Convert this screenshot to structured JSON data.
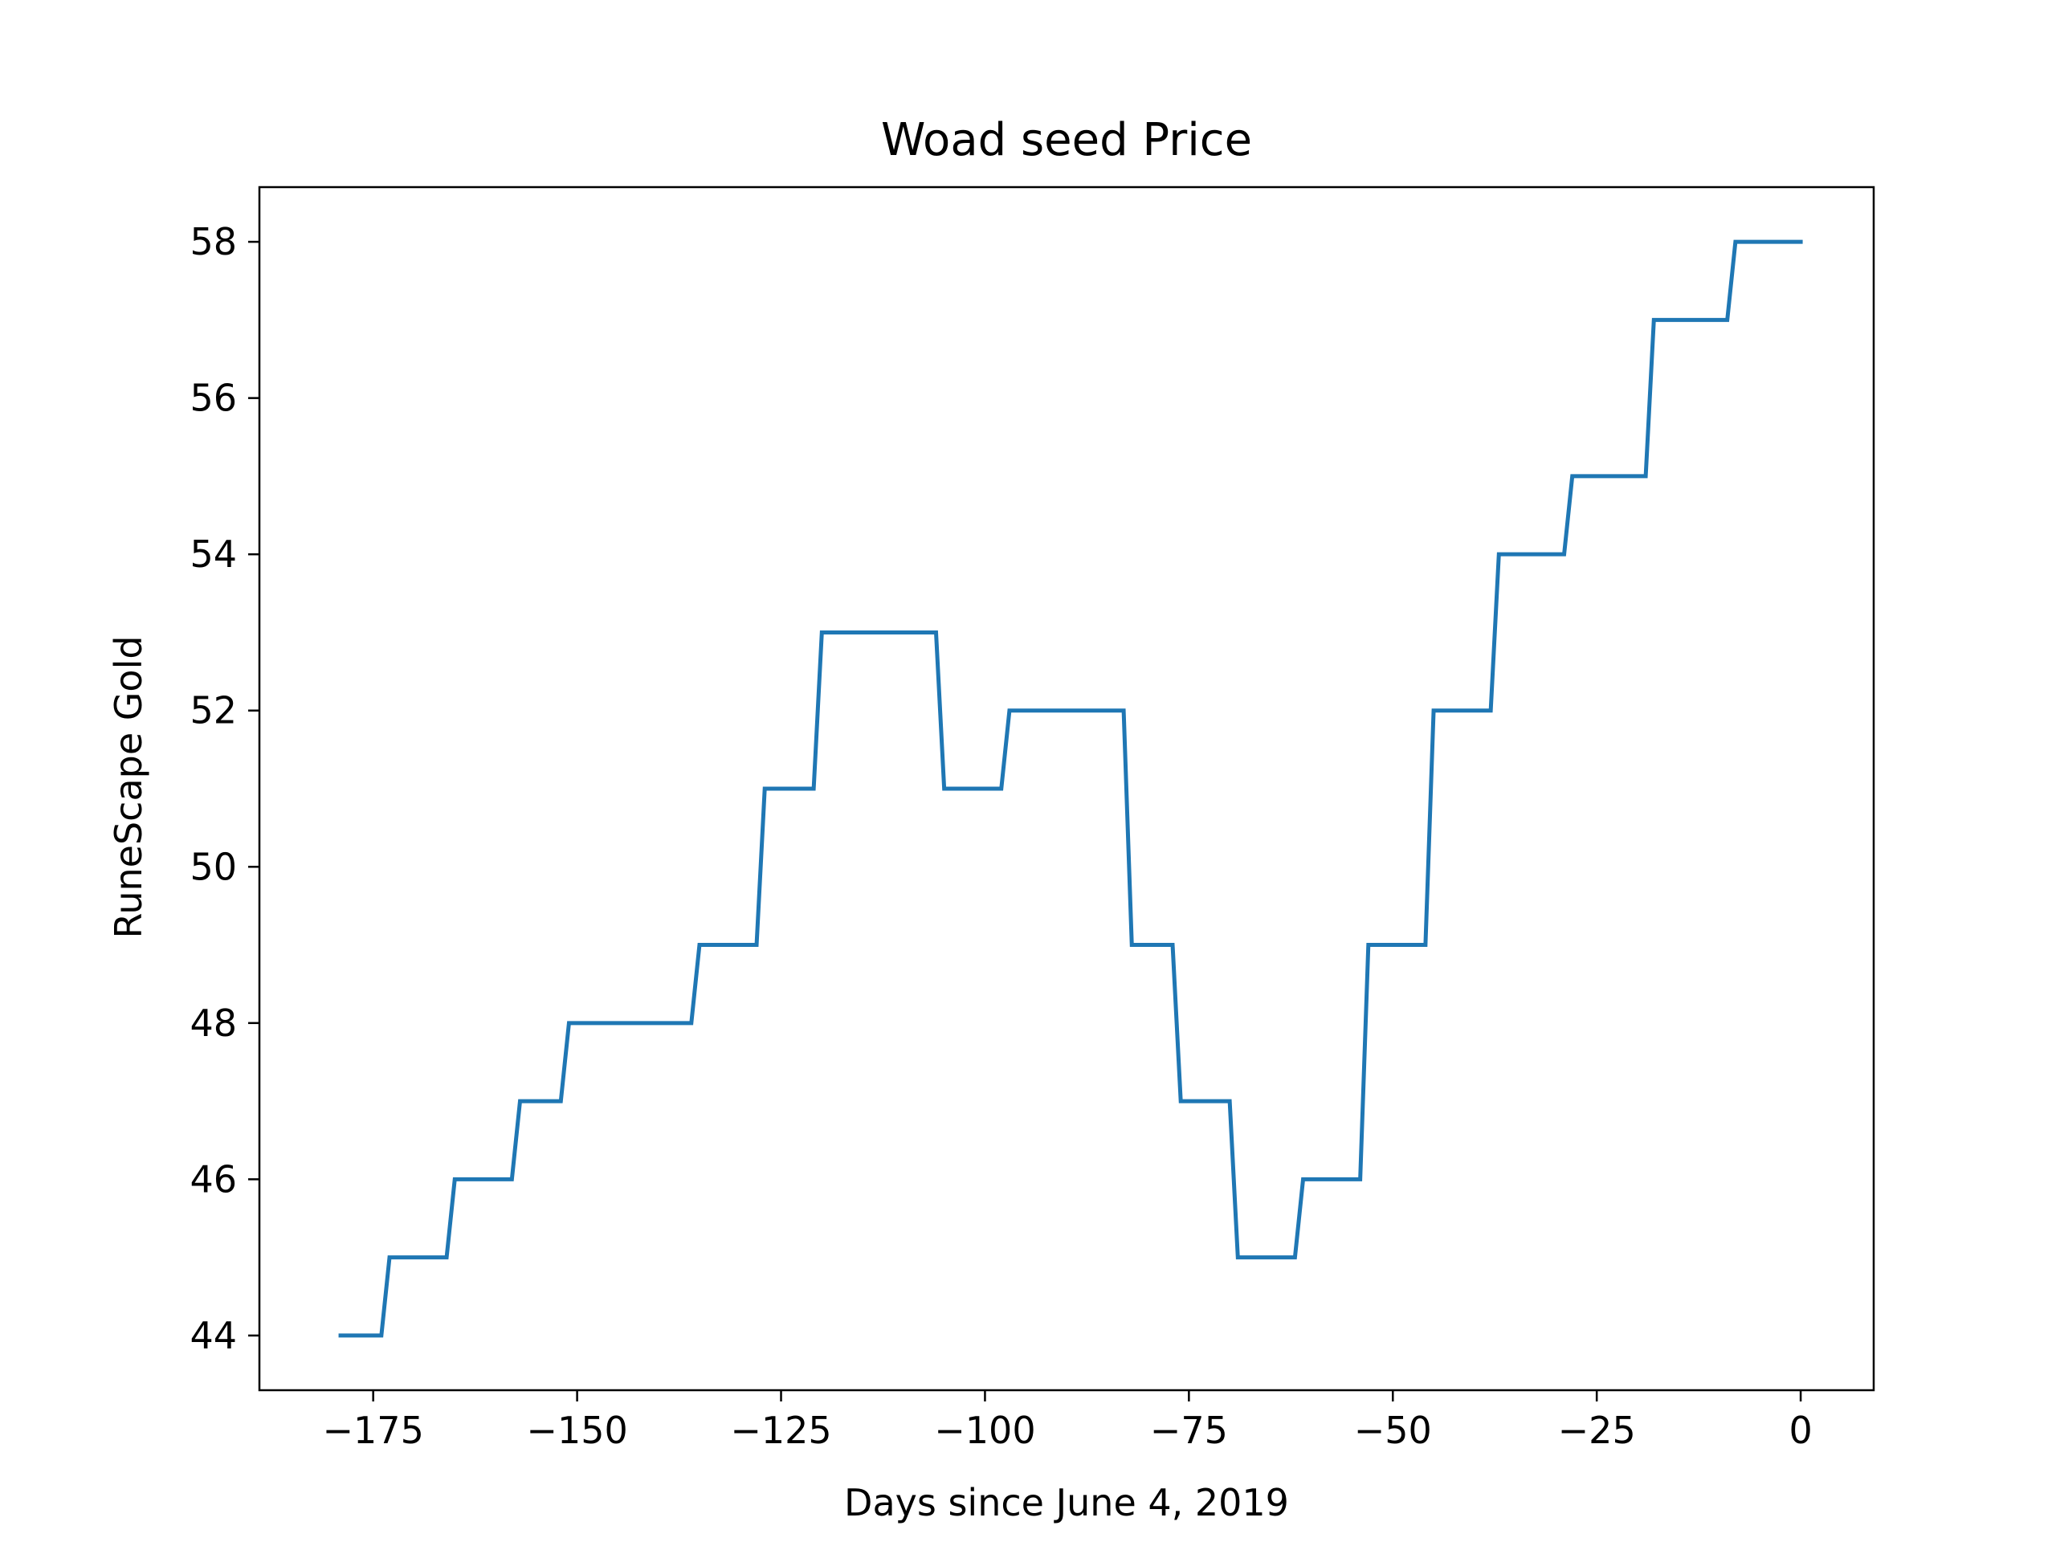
{
  "chart_data": {
    "type": "line",
    "title": "Woad seed Price",
    "xlabel": "Days since June 4, 2019",
    "ylabel": "RuneScape Gold",
    "xlim": [
      -188.95,
      8.95
    ],
    "ylim": [
      43.3,
      58.7
    ],
    "xticks": [
      -175,
      -150,
      -125,
      -100,
      -75,
      -50,
      -25,
      0
    ],
    "xtick_labels": [
      "−175",
      "−150",
      "−125",
      "−100",
      "−75",
      "−50",
      "−25",
      "0"
    ],
    "yticks": [
      44,
      46,
      48,
      50,
      52,
      54,
      56,
      58
    ],
    "ytick_labels": [
      "44",
      "46",
      "48",
      "50",
      "52",
      "54",
      "56",
      "58"
    ],
    "grid": false,
    "series": [
      {
        "color": "#1f77b4",
        "x": [
          -179,
          -174,
          -173,
          -166,
          -165,
          -158,
          -157,
          -152,
          -151,
          -136,
          -135,
          -128,
          -127,
          -121,
          -120,
          -106,
          -105,
          -98,
          -97,
          -83,
          -82,
          -77,
          -76,
          -70,
          -69,
          -62,
          -61,
          -54,
          -53,
          -46,
          -45,
          -38,
          -37,
          -29,
          -28,
          -19,
          -18,
          -9,
          -8,
          0
        ],
        "y": [
          44,
          44,
          45,
          45,
          46,
          46,
          47,
          47,
          48,
          48,
          49,
          49,
          51,
          51,
          53,
          53,
          51,
          51,
          52,
          52,
          49,
          49,
          47,
          47,
          45,
          45,
          46,
          46,
          49,
          49,
          52,
          52,
          54,
          54,
          55,
          55,
          57,
          57,
          58,
          58
        ]
      }
    ]
  }
}
